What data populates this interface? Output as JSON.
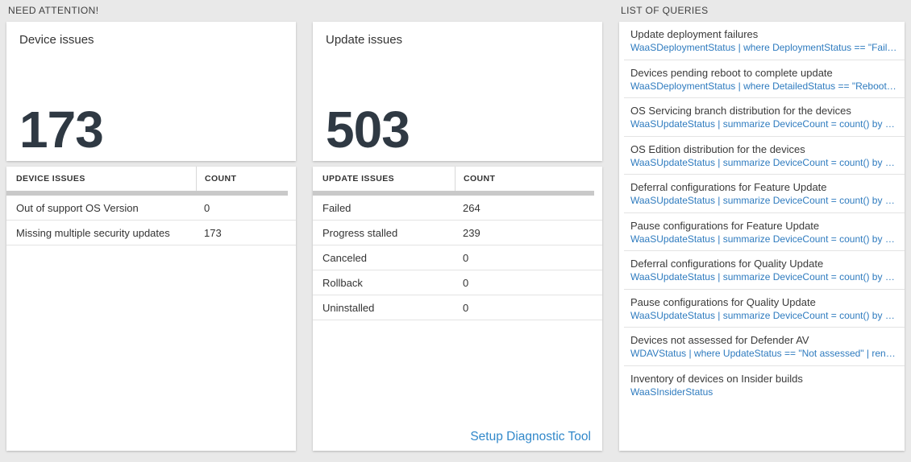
{
  "colors": {
    "page_bg": "#e9e9e9",
    "tile_bg": "#ffffff",
    "text_dark": "#333333",
    "number_color": "#2f3943",
    "query_blue": "#2e7bbf",
    "link_blue": "#3188ca",
    "band_gray": "#c9c9c9",
    "separator": "#e3e3e3"
  },
  "headers": {
    "need_attention": "NEED ATTENTION!",
    "list_of_queries": "LIST OF QUERIES"
  },
  "device_card": {
    "title": "Device issues",
    "value": "173",
    "columns": [
      "DEVICE ISSUES",
      "COUNT"
    ],
    "rows": [
      {
        "label": "Out of support OS Version",
        "count": "0"
      },
      {
        "label": "Missing multiple security updates",
        "count": "173"
      }
    ]
  },
  "update_card": {
    "title": "Update issues",
    "value": "503",
    "columns": [
      "UPDATE ISSUES",
      "COUNT"
    ],
    "rows": [
      {
        "label": "Failed",
        "count": "264"
      },
      {
        "label": "Progress stalled",
        "count": "239"
      },
      {
        "label": "Canceled",
        "count": "0"
      },
      {
        "label": "Rollback",
        "count": "0"
      },
      {
        "label": "Uninstalled",
        "count": "0"
      }
    ],
    "link_label": "Setup Diagnostic Tool"
  },
  "query_list": {
    "items": [
      {
        "title": "Update deployment failures",
        "query": "WaaSDeploymentStatus | where DeploymentStatus == \"Failed\" |..."
      },
      {
        "title": "Devices pending reboot to complete update",
        "query": "WaaSDeploymentStatus | where DetailedStatus == \"Reboot pend..."
      },
      {
        "title": "OS Servicing branch distribution for the devices",
        "query": "WaaSUpdateStatus | summarize DeviceCount = count() by OSSer..."
      },
      {
        "title": "OS Edition distribution for the devices",
        "query": "WaaSUpdateStatus | summarize DeviceCount = count() by OSEdit..."
      },
      {
        "title": "Deferral configurations for Feature Update",
        "query": "WaaSUpdateStatus | summarize DeviceCount = count() by Featur..."
      },
      {
        "title": "Pause configurations for Feature Update",
        "query": "WaaSUpdateStatus | summarize DeviceCount = count() by Featur..."
      },
      {
        "title": "Deferral configurations for Quality Update",
        "query": "WaaSUpdateStatus | summarize DeviceCount = count() by Qualit..."
      },
      {
        "title": "Pause configurations for Quality Update",
        "query": "WaaSUpdateStatus | summarize DeviceCount = count() by Qualit..."
      },
      {
        "title": "Devices not assessed for Defender AV",
        "query": "WDAVStatus | where UpdateStatus == \"Not assessed\" | render ta..."
      },
      {
        "title": "Inventory of devices on Insider builds",
        "query": "WaaSInsiderStatus"
      }
    ]
  }
}
